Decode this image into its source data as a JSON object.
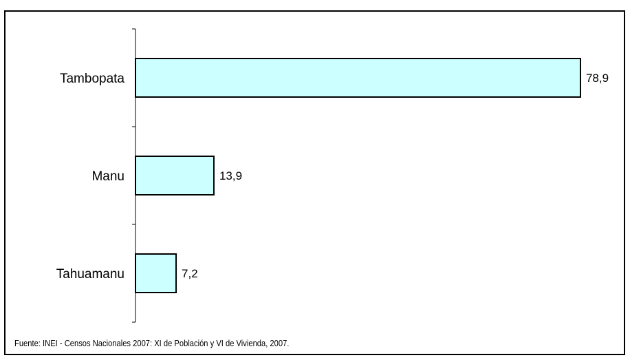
{
  "chart_data": {
    "type": "bar",
    "orientation": "horizontal",
    "categories": [
      "Tambopata",
      "Manu",
      "Tahuamanu"
    ],
    "values": [
      78.9,
      13.9,
      7.2
    ],
    "value_labels": [
      "78,9",
      "13,9",
      "7,2"
    ],
    "xlim": [
      0,
      100
    ],
    "grid": false,
    "legend": "none",
    "bar_color": "#ccffff",
    "bar_border_color": "#000000"
  },
  "source": "Fuente: INEI - Censos Nacionales 2007: XI de Población y VI de Vivienda, 2007."
}
